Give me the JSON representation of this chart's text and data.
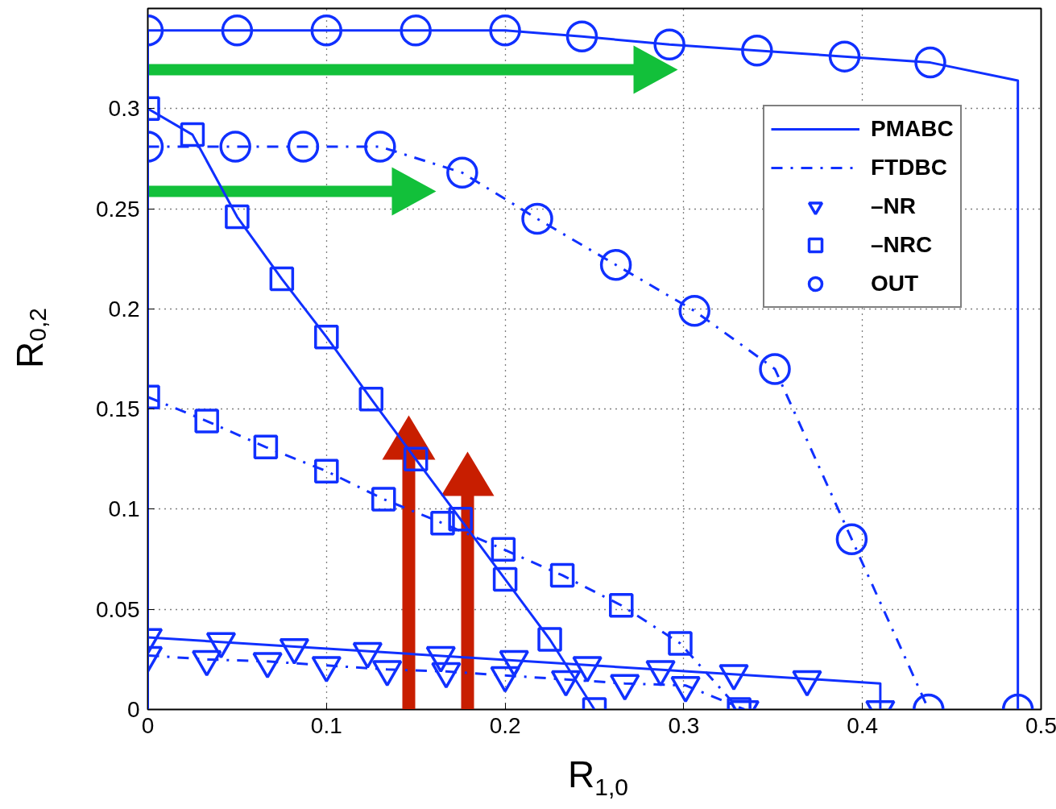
{
  "chart_data": {
    "type": "line",
    "xlabel": "R$_{1,0}$",
    "ylabel": "R$_{0,2}$",
    "xlim": [
      0,
      0.5
    ],
    "ylim": [
      0,
      0.35
    ],
    "xticks": [
      0,
      0.1,
      0.2,
      0.3,
      0.4,
      0.5
    ],
    "yticks": [
      0,
      0.05,
      0.1,
      0.15,
      0.2,
      0.25,
      0.3
    ],
    "grid": true,
    "legend": "top right",
    "series": [
      {
        "name": "PMABC",
        "color": "#1030ff",
        "line_style": "solid",
        "marker": "none",
        "x": [
          0,
          0,
          0.05,
          0.1,
          0.15,
          0.2,
          0.243,
          0.292,
          0.341,
          0.39,
          0.438,
          0.487,
          0.487
        ],
        "values": [
          0,
          0.339,
          0.339,
          0.339,
          0.339,
          0.339,
          0.336,
          0.332,
          0.329,
          0.326,
          0.323,
          0.314,
          0
        ]
      },
      {
        "name": "FTDBC",
        "color": "#1030ff",
        "line_style": "dashdot",
        "marker": "none",
        "x": [
          0,
          0.033,
          0.066,
          0.1,
          0.132,
          0.165,
          0.199,
          0.232,
          0.265,
          0.298,
          0.331
        ],
        "values": [
          0.156,
          0.144,
          0.131,
          0.119,
          0.105,
          0.093,
          0.08,
          0.067,
          0.052,
          0.033,
          0
        ]
      },
      {
        "type": "scatter",
        "name": "–NR",
        "color": "#1030ff",
        "marker": "triangle",
        "x": [
          0,
          0.041,
          0.082,
          0.123,
          0.164,
          0.205,
          0.246,
          0.287,
          0.328,
          0.369,
          0.41
        ],
        "values": [
          0.036,
          0.034,
          0.031,
          0.029,
          0.027,
          0.025,
          0.022,
          0.02,
          0.018,
          0.015,
          0
        ]
      },
      {
        "type": "scatter",
        "name": "–NRC",
        "color": "#1030ff",
        "marker": "square",
        "x": [
          0,
          0.033,
          0.066,
          0.1,
          0.132,
          0.165,
          0.199,
          0.232,
          0.265,
          0.298,
          0.331
        ],
        "values": [
          0.156,
          0.144,
          0.131,
          0.119,
          0.105,
          0.093,
          0.08,
          0.067,
          0.052,
          0.033,
          0
        ]
      },
      {
        "type": "scatter",
        "name": "OUT",
        "color": "#1030ff",
        "marker": "circle",
        "x": [
          0,
          0.05,
          0.1,
          0.15,
          0.2,
          0.243,
          0.292,
          0.341,
          0.39,
          0.438,
          0.487
        ],
        "values": [
          0.339,
          0.339,
          0.339,
          0.339,
          0.339,
          0.336,
          0.332,
          0.329,
          0.326,
          0.323,
          0
        ]
      },
      {
        "color": "#1030ff",
        "line_style": "dashdot",
        "marker": "circle",
        "x": [
          0,
          0.049,
          0.087,
          0.13,
          0.176,
          0.218,
          0.262,
          0.306,
          0.351,
          0.394,
          0.437
        ],
        "values": [
          0.281,
          0.281,
          0.281,
          0.281,
          0.268,
          0.245,
          0.222,
          0.199,
          0.17,
          0.085,
          0
        ]
      },
      {
        "color": "#1030ff",
        "line_style": "solid",
        "marker": "square",
        "x": [
          0,
          0.025,
          0.05,
          0.075,
          0.1,
          0.125,
          0.15,
          0.175,
          0.2,
          0.225,
          0.25
        ],
        "values": [
          0.3,
          0.287,
          0.246,
          0.215,
          0.186,
          0.155,
          0.125,
          0.095,
          0.065,
          0.035,
          0
        ]
      },
      {
        "color": "#1030ff",
        "line_style": "solid",
        "marker": "none",
        "x": [
          0,
          0.41,
          0.41
        ],
        "values": [
          0.036,
          0.013,
          0
        ]
      },
      {
        "color": "#1030ff",
        "line_style": "dashdot",
        "marker": "triangle",
        "x": [
          0,
          0.033,
          0.067,
          0.1,
          0.134,
          0.167,
          0.2,
          0.234,
          0.267,
          0.301,
          0.334
        ],
        "values": [
          0.027,
          0.025,
          0.024,
          0.022,
          0.02,
          0.019,
          0.017,
          0.015,
          0.013,
          0.012,
          0
        ]
      }
    ]
  }
}
